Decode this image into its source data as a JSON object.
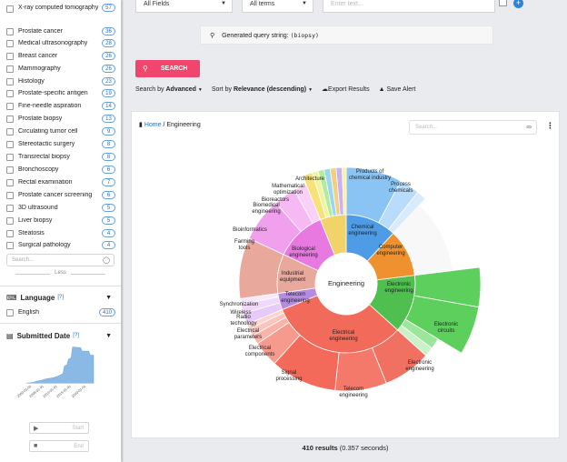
{
  "sidebar": {
    "facets": [
      {
        "label": "X-ray computed tomography",
        "count": "57"
      },
      {
        "label": "Prostate cancer",
        "count": "36"
      },
      {
        "label": "Medical ultrasonography",
        "count": "28"
      },
      {
        "label": "Breast cancer",
        "count": "26"
      },
      {
        "label": "Mammography",
        "count": "26"
      },
      {
        "label": "Histology",
        "count": "23"
      },
      {
        "label": "Prostate-specific antigen",
        "count": "19"
      },
      {
        "label": "Fine-needle aspiration",
        "count": "14"
      },
      {
        "label": "Prostate biopsy",
        "count": "13"
      },
      {
        "label": "Circulating tumor cell",
        "count": "9"
      },
      {
        "label": "Stereotactic surgery",
        "count": "8"
      },
      {
        "label": "Transrectal biopsy",
        "count": "8"
      },
      {
        "label": "Bronchoscopy",
        "count": "6"
      },
      {
        "label": "Rectal examination",
        "count": "7"
      },
      {
        "label": "Prostate cancer screening",
        "count": "6"
      },
      {
        "label": "3D ultrasound",
        "count": "5"
      },
      {
        "label": "Liver biopsy",
        "count": "5"
      },
      {
        "label": "Steatosis",
        "count": "4"
      },
      {
        "label": "Surgical pathology",
        "count": "4"
      }
    ],
    "facet_search_placeholder": "Search...",
    "less_label": "Less",
    "language": {
      "title": "Language",
      "help": "[?]",
      "items": [
        {
          "label": "English",
          "count": "410"
        }
      ]
    },
    "submitted": {
      "title": "Submitted Date",
      "help": "[?]",
      "ticks": [
        "2000-01-01",
        "2005-01-01",
        "2010-01-01",
        "2015-01-01",
        "2020-01-01"
      ],
      "start_placeholder": "Start",
      "end_placeholder": "End"
    }
  },
  "search": {
    "field_select": "All Fields",
    "terms_select": "All terms",
    "text_placeholder": "Enter text...",
    "query_label": "Generated query string:",
    "query_value": "(biopsy)",
    "button_label": "SEARCH"
  },
  "toolbar": {
    "search_by_prefix": "Search by",
    "search_by_value": "Advanced",
    "sort_by_prefix": "Sort by",
    "sort_by_value": "Relevance (descending)",
    "export_label": "Export Results",
    "alert_label": "Save Alert"
  },
  "panel": {
    "breadcrumb_home": "Home",
    "breadcrumb_current": "Engineering",
    "search_placeholder": "Search..."
  },
  "sunburst": {
    "center": "Engineering",
    "inner": [
      {
        "label": "Chemical engineering",
        "color": "#4e9be6"
      },
      {
        "label": "Computer engineering",
        "color": "#f0912f"
      },
      {
        "label": "Electronic engineering",
        "color": "#4fbf4f"
      },
      {
        "label": "Electrical engineering",
        "color": "#f26a5a"
      },
      {
        "label": "Telecom engineering",
        "color": "#b48ce0"
      },
      {
        "label": "Industrial equipment",
        "color": "#e8a89c"
      },
      {
        "label": "Biological engineering",
        "color": "#e879e0"
      }
    ],
    "outer": [
      {
        "label": "Products of chemical industry"
      },
      {
        "label": "Process chemicals"
      },
      {
        "label": "Electronic circuits"
      },
      {
        "label": "Electronic engineering"
      },
      {
        "label": "Telecom engineering"
      },
      {
        "label": "Signal processing"
      },
      {
        "label": "Electrical components"
      },
      {
        "label": "Electrical parameters"
      },
      {
        "label": "Radio technology"
      },
      {
        "label": "Wireless"
      },
      {
        "label": "Synchronization"
      },
      {
        "label": "Farming tools"
      },
      {
        "label": "Bioinformatics"
      },
      {
        "label": "Biomedical engineering"
      },
      {
        "label": "Bioreactors"
      },
      {
        "label": "Mathematical optimization"
      },
      {
        "label": "Architecture"
      }
    ]
  },
  "results": {
    "count": "410 results",
    "time": "(0.357 seconds)"
  }
}
